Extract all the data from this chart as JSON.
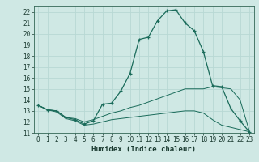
{
  "xlabel": "Humidex (Indice chaleur)",
  "bg_color": "#cfe8e4",
  "grid_color": "#b8d8d4",
  "line_color": "#1a6b5a",
  "xlim": [
    -0.5,
    23.5
  ],
  "ylim": [
    11,
    22.5
  ],
  "xticks": [
    0,
    1,
    2,
    3,
    4,
    5,
    6,
    7,
    8,
    9,
    10,
    11,
    12,
    13,
    14,
    15,
    16,
    17,
    18,
    19,
    20,
    21,
    22,
    23
  ],
  "yticks": [
    11,
    12,
    13,
    14,
    15,
    16,
    17,
    18,
    19,
    20,
    21,
    22
  ],
  "curve1_x": [
    0,
    1,
    2,
    3,
    4,
    5,
    6,
    7,
    8,
    9,
    10,
    11,
    12,
    13,
    14,
    15,
    16,
    17,
    18,
    19,
    20,
    21,
    22,
    23
  ],
  "curve1_y": [
    13.5,
    13.1,
    13.0,
    12.4,
    12.2,
    11.8,
    12.1,
    13.6,
    13.7,
    14.8,
    16.4,
    19.5,
    19.7,
    21.2,
    22.1,
    22.2,
    21.0,
    20.3,
    18.4,
    15.3,
    15.2,
    13.2,
    12.1,
    11.1
  ],
  "curve2_x": [
    0,
    1,
    2,
    3,
    4,
    5,
    6,
    7,
    8,
    9,
    10,
    11,
    12,
    13,
    14,
    15,
    16,
    17,
    18,
    19,
    20,
    21,
    22,
    23
  ],
  "curve2_y": [
    13.5,
    13.1,
    13.0,
    12.4,
    12.3,
    12.0,
    12.2,
    12.5,
    12.8,
    13.0,
    13.3,
    13.5,
    13.8,
    14.1,
    14.4,
    14.7,
    15.0,
    15.0,
    15.0,
    15.2,
    15.1,
    15.0,
    14.0,
    11.2
  ],
  "curve3_x": [
    0,
    1,
    2,
    3,
    4,
    5,
    6,
    7,
    8,
    9,
    10,
    11,
    12,
    13,
    14,
    15,
    16,
    17,
    18,
    19,
    20,
    21,
    22,
    23
  ],
  "curve3_y": [
    13.5,
    13.1,
    12.9,
    12.3,
    12.1,
    11.7,
    11.8,
    12.0,
    12.2,
    12.3,
    12.4,
    12.5,
    12.6,
    12.7,
    12.8,
    12.9,
    13.0,
    13.0,
    12.8,
    12.2,
    11.7,
    11.5,
    11.3,
    11.1
  ],
  "tick_fontsize": 5.5,
  "xlabel_fontsize": 6.5
}
